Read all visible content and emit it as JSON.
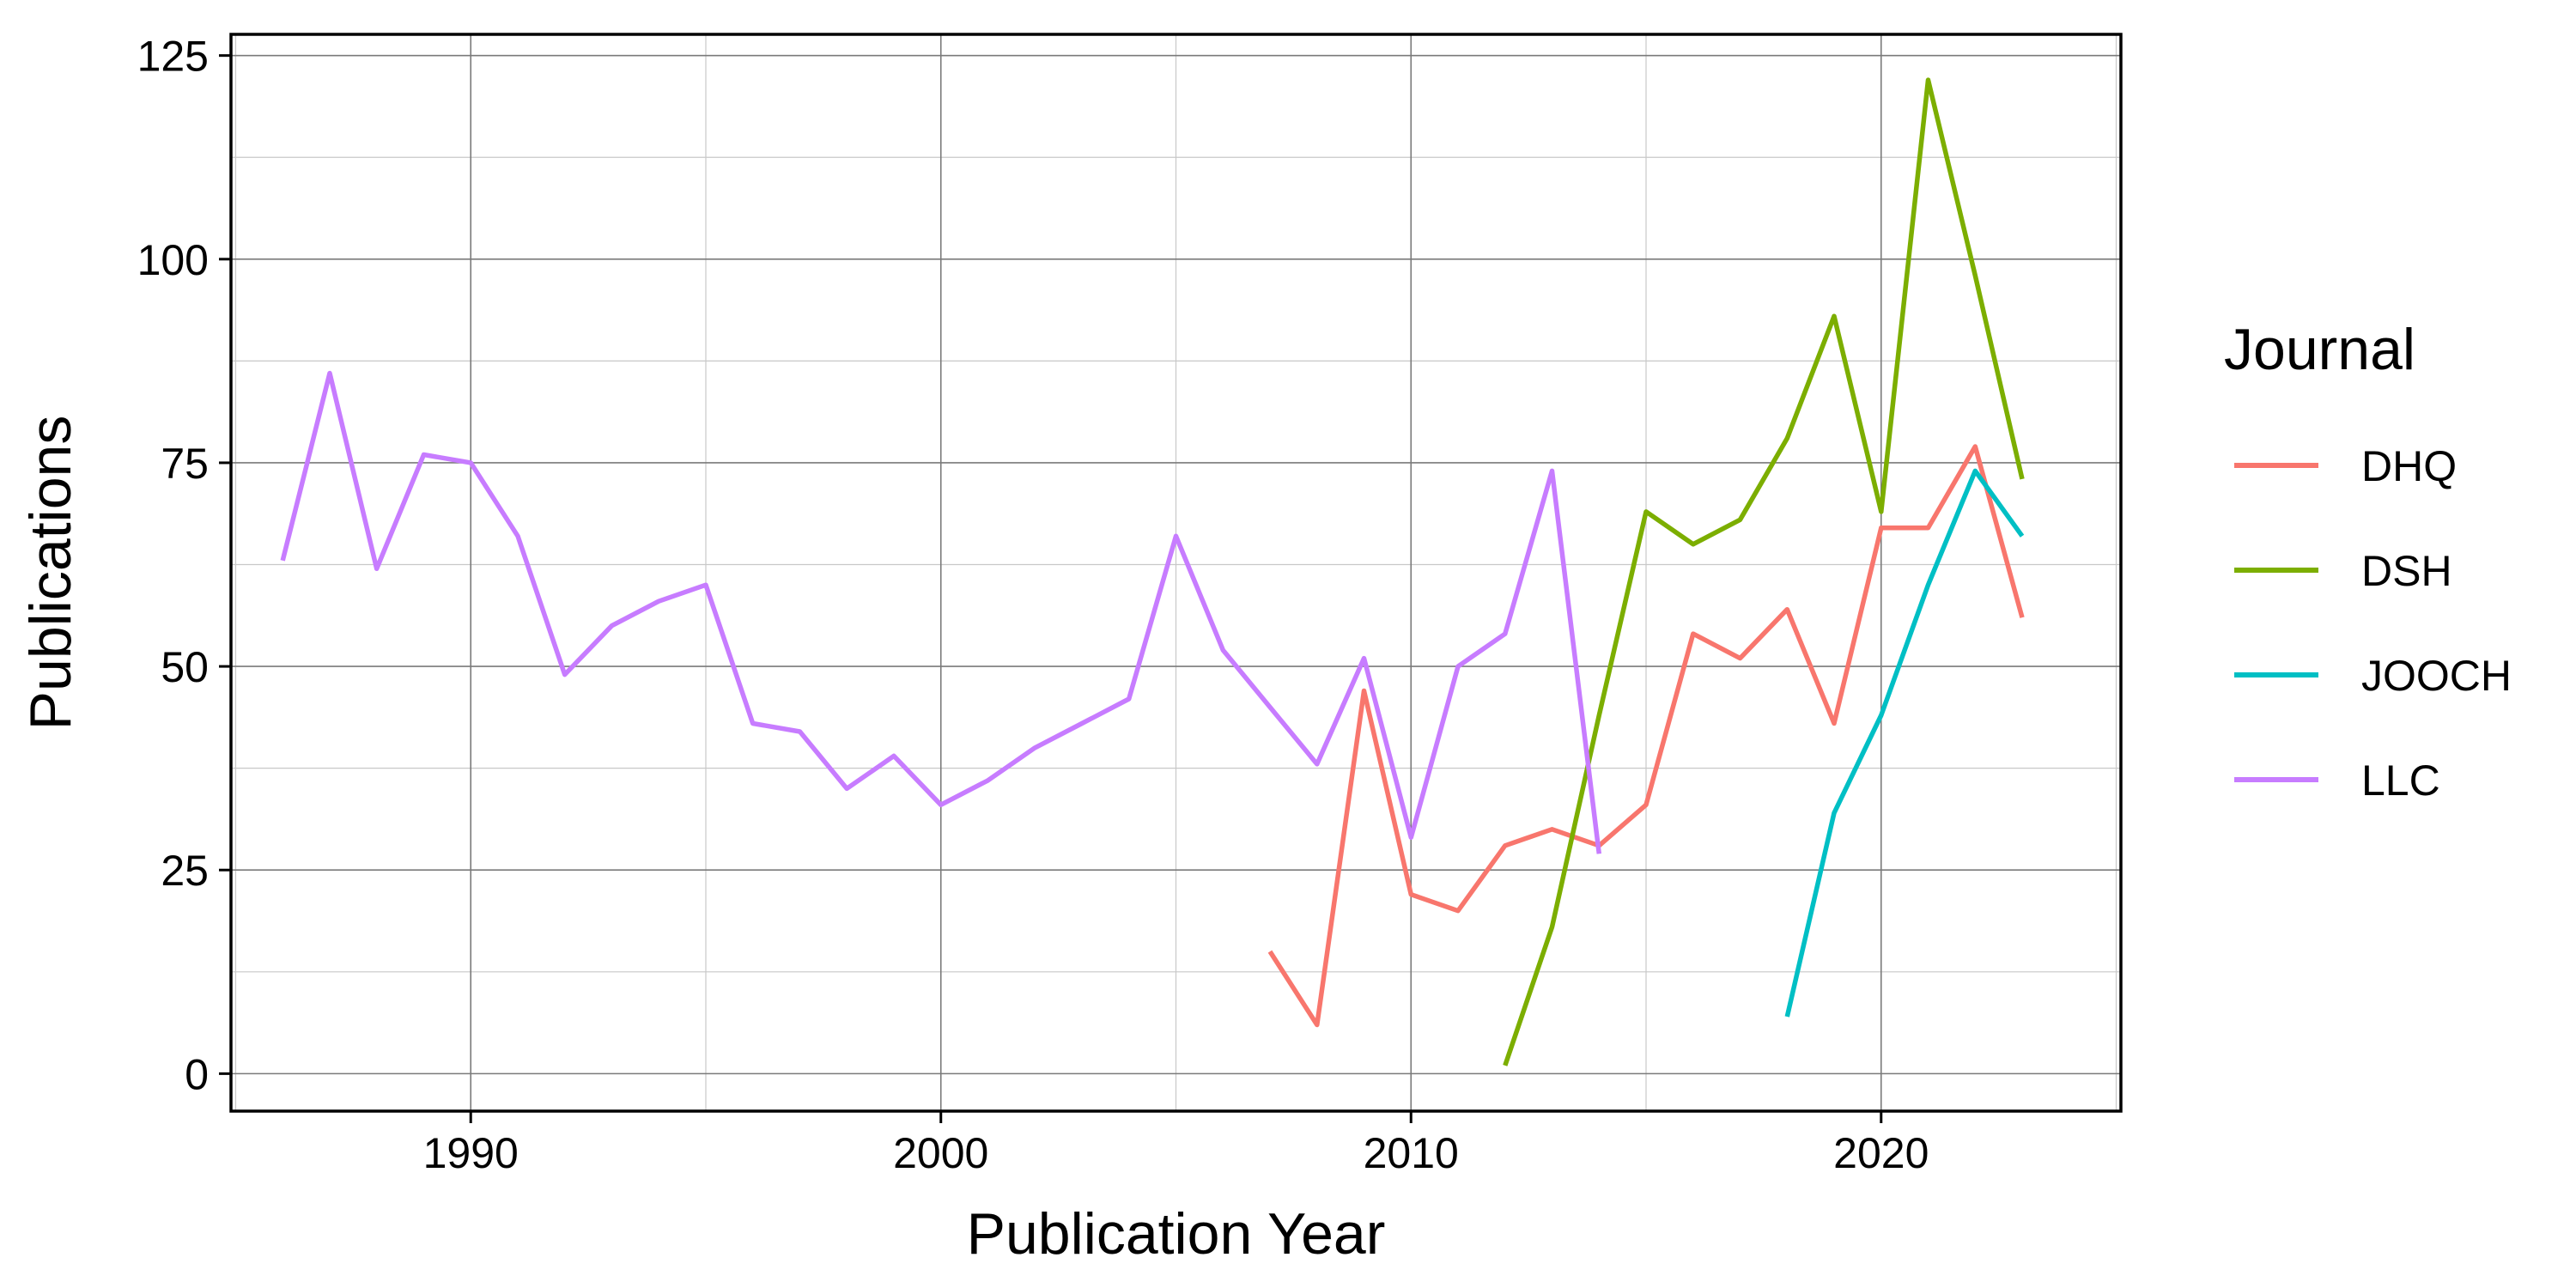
{
  "chart_data": {
    "type": "line",
    "title": "",
    "xlabel": "Publication Year",
    "ylabel": "Publications",
    "xlim": [
      1984.9,
      2025.1
    ],
    "ylim": [
      -4.6,
      127.6
    ],
    "x_ticks": [
      1990,
      2000,
      2010,
      2020
    ],
    "x_tick_labels": [
      "1990",
      "2000",
      "2010",
      "2020"
    ],
    "y_ticks": [
      0,
      25,
      50,
      75,
      100,
      125
    ],
    "y_tick_labels": [
      "0",
      "25",
      "50",
      "75",
      "100",
      "125"
    ],
    "grid": true,
    "legend": {
      "title": "Journal",
      "position": "right"
    },
    "series": [
      {
        "name": "DHQ",
        "color": "#F8766D",
        "points": [
          [
            2007,
            15
          ],
          [
            2008,
            6
          ],
          [
            2009,
            47
          ],
          [
            2010,
            22
          ],
          [
            2011,
            20
          ],
          [
            2012,
            28
          ],
          [
            2013,
            30
          ],
          [
            2014,
            28
          ],
          [
            2015,
            33
          ],
          [
            2016,
            54
          ],
          [
            2017,
            51
          ],
          [
            2018,
            57
          ],
          [
            2019,
            43
          ],
          [
            2020,
            67
          ],
          [
            2021,
            67
          ],
          [
            2022,
            77
          ],
          [
            2023,
            56
          ]
        ]
      },
      {
        "name": "DSH",
        "color": "#7CAE00",
        "points": [
          [
            2012,
            1
          ],
          [
            2013,
            18
          ],
          [
            2014,
            44
          ],
          [
            2015,
            69
          ],
          [
            2016,
            65
          ],
          [
            2017,
            68
          ],
          [
            2018,
            78
          ],
          [
            2019,
            93
          ],
          [
            2020,
            69
          ],
          [
            2021,
            122
          ],
          [
            2022,
            98
          ],
          [
            2023,
            73
          ]
        ]
      },
      {
        "name": "JOOCH",
        "color": "#00BFC4",
        "points": [
          [
            2018,
            7
          ],
          [
            2019,
            32
          ],
          [
            2020,
            44
          ],
          [
            2021,
            60
          ],
          [
            2022,
            74
          ],
          [
            2023,
            66
          ]
        ]
      },
      {
        "name": "LLC",
        "color": "#C77CFF",
        "points": [
          [
            1986,
            63
          ],
          [
            1987,
            86
          ],
          [
            1988,
            62
          ],
          [
            1989,
            76
          ],
          [
            1990,
            75
          ],
          [
            1991,
            66
          ],
          [
            1992,
            49
          ],
          [
            1993,
            55
          ],
          [
            1994,
            58
          ],
          [
            1995,
            60
          ],
          [
            1996,
            43
          ],
          [
            1997,
            42
          ],
          [
            1998,
            35
          ],
          [
            1999,
            39
          ],
          [
            2000,
            33
          ],
          [
            2001,
            36
          ],
          [
            2002,
            40
          ],
          [
            2003,
            43
          ],
          [
            2004,
            46
          ],
          [
            2005,
            66
          ],
          [
            2006,
            52
          ],
          [
            2007,
            45
          ],
          [
            2008,
            38
          ],
          [
            2009,
            51
          ],
          [
            2010,
            29
          ],
          [
            2011,
            50
          ],
          [
            2012,
            54
          ],
          [
            2013,
            74
          ],
          [
            2014,
            27
          ]
        ]
      }
    ]
  }
}
